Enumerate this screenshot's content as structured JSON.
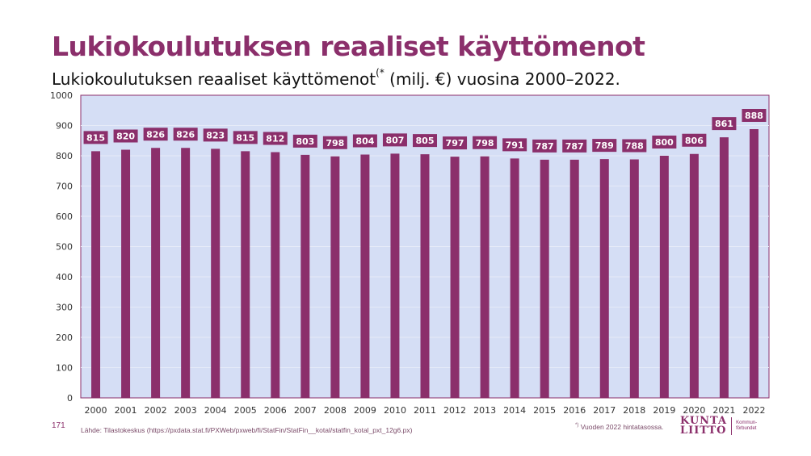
{
  "title": "Lukiokoulutuksen reaaliset käyttömenot",
  "subtitle_main": "Lukiokoulutuksen reaaliset käyttömenot",
  "subtitle_sup": "(*",
  "subtitle_rest": " (milj. €) vuosina 2000–2022.",
  "page_number": "171",
  "source": "Lähde: Tilastokeskus (https://pxdata.stat.fi/PXWeb/pxweb/fi/StatFin/StatFin__kotal/statfin_kotal_pxt_12g6.px)",
  "footnote_mark": "*)",
  "footnote_text": " Vuoden 2022 hintatasossa.",
  "logo": {
    "line1": "KUNTA",
    "line2": "LIITTO",
    "sub1": "Kommun-",
    "sub2": "förbundet"
  },
  "colors": {
    "bar": "#8b2f6b",
    "plot_bg": "#d5def5",
    "title": "#8b2f6b",
    "label_text": "#ffffff"
  },
  "chart_data": {
    "type": "bar",
    "categories": [
      "2000",
      "2001",
      "2002",
      "2003",
      "2004",
      "2005",
      "2006",
      "2007",
      "2008",
      "2009",
      "2010",
      "2011",
      "2012",
      "2013",
      "2014",
      "2015",
      "2016",
      "2017",
      "2018",
      "2019",
      "2020",
      "2021",
      "2022"
    ],
    "values": [
      815,
      820,
      826,
      826,
      823,
      815,
      812,
      803,
      798,
      804,
      807,
      805,
      797,
      798,
      791,
      787,
      787,
      789,
      788,
      800,
      806,
      861,
      888
    ],
    "ylim": [
      0,
      1000
    ],
    "yticks": [
      0,
      100,
      200,
      300,
      400,
      500,
      600,
      700,
      800,
      900,
      1000
    ],
    "grid": true,
    "data_labels": true
  }
}
